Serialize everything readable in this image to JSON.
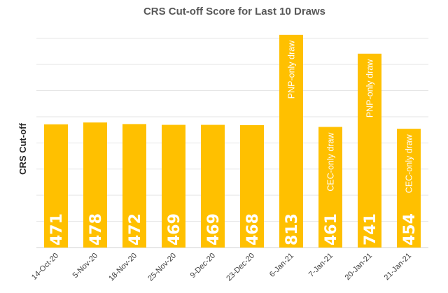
{
  "chart_data": {
    "type": "bar",
    "title": "CRS Cut-off Score for Last 10 Draws",
    "ylabel": "CRS Cut-off",
    "xlabel": "",
    "categories": [
      "14-Oct-20",
      "5-Nov-20",
      "18-Nov-20",
      "25-Nov-20",
      "9-Dec-20",
      "23-Dec-20",
      "6-Jan-21",
      "7-Jan-21",
      "20-Jan-21",
      "21-Jan-21"
    ],
    "values": [
      471,
      478,
      472,
      469,
      469,
      468,
      813,
      461,
      741,
      454
    ],
    "annotations": [
      "",
      "",
      "",
      "",
      "",
      "",
      "PNP-only draw",
      "CEC-only draw",
      "PNP-only draw",
      "CEC-only draw"
    ],
    "ylim": [
      0,
      850
    ],
    "grid": true,
    "legend": "none",
    "bar_color": "#FFC000",
    "grid_color": "#e6e6e6"
  }
}
